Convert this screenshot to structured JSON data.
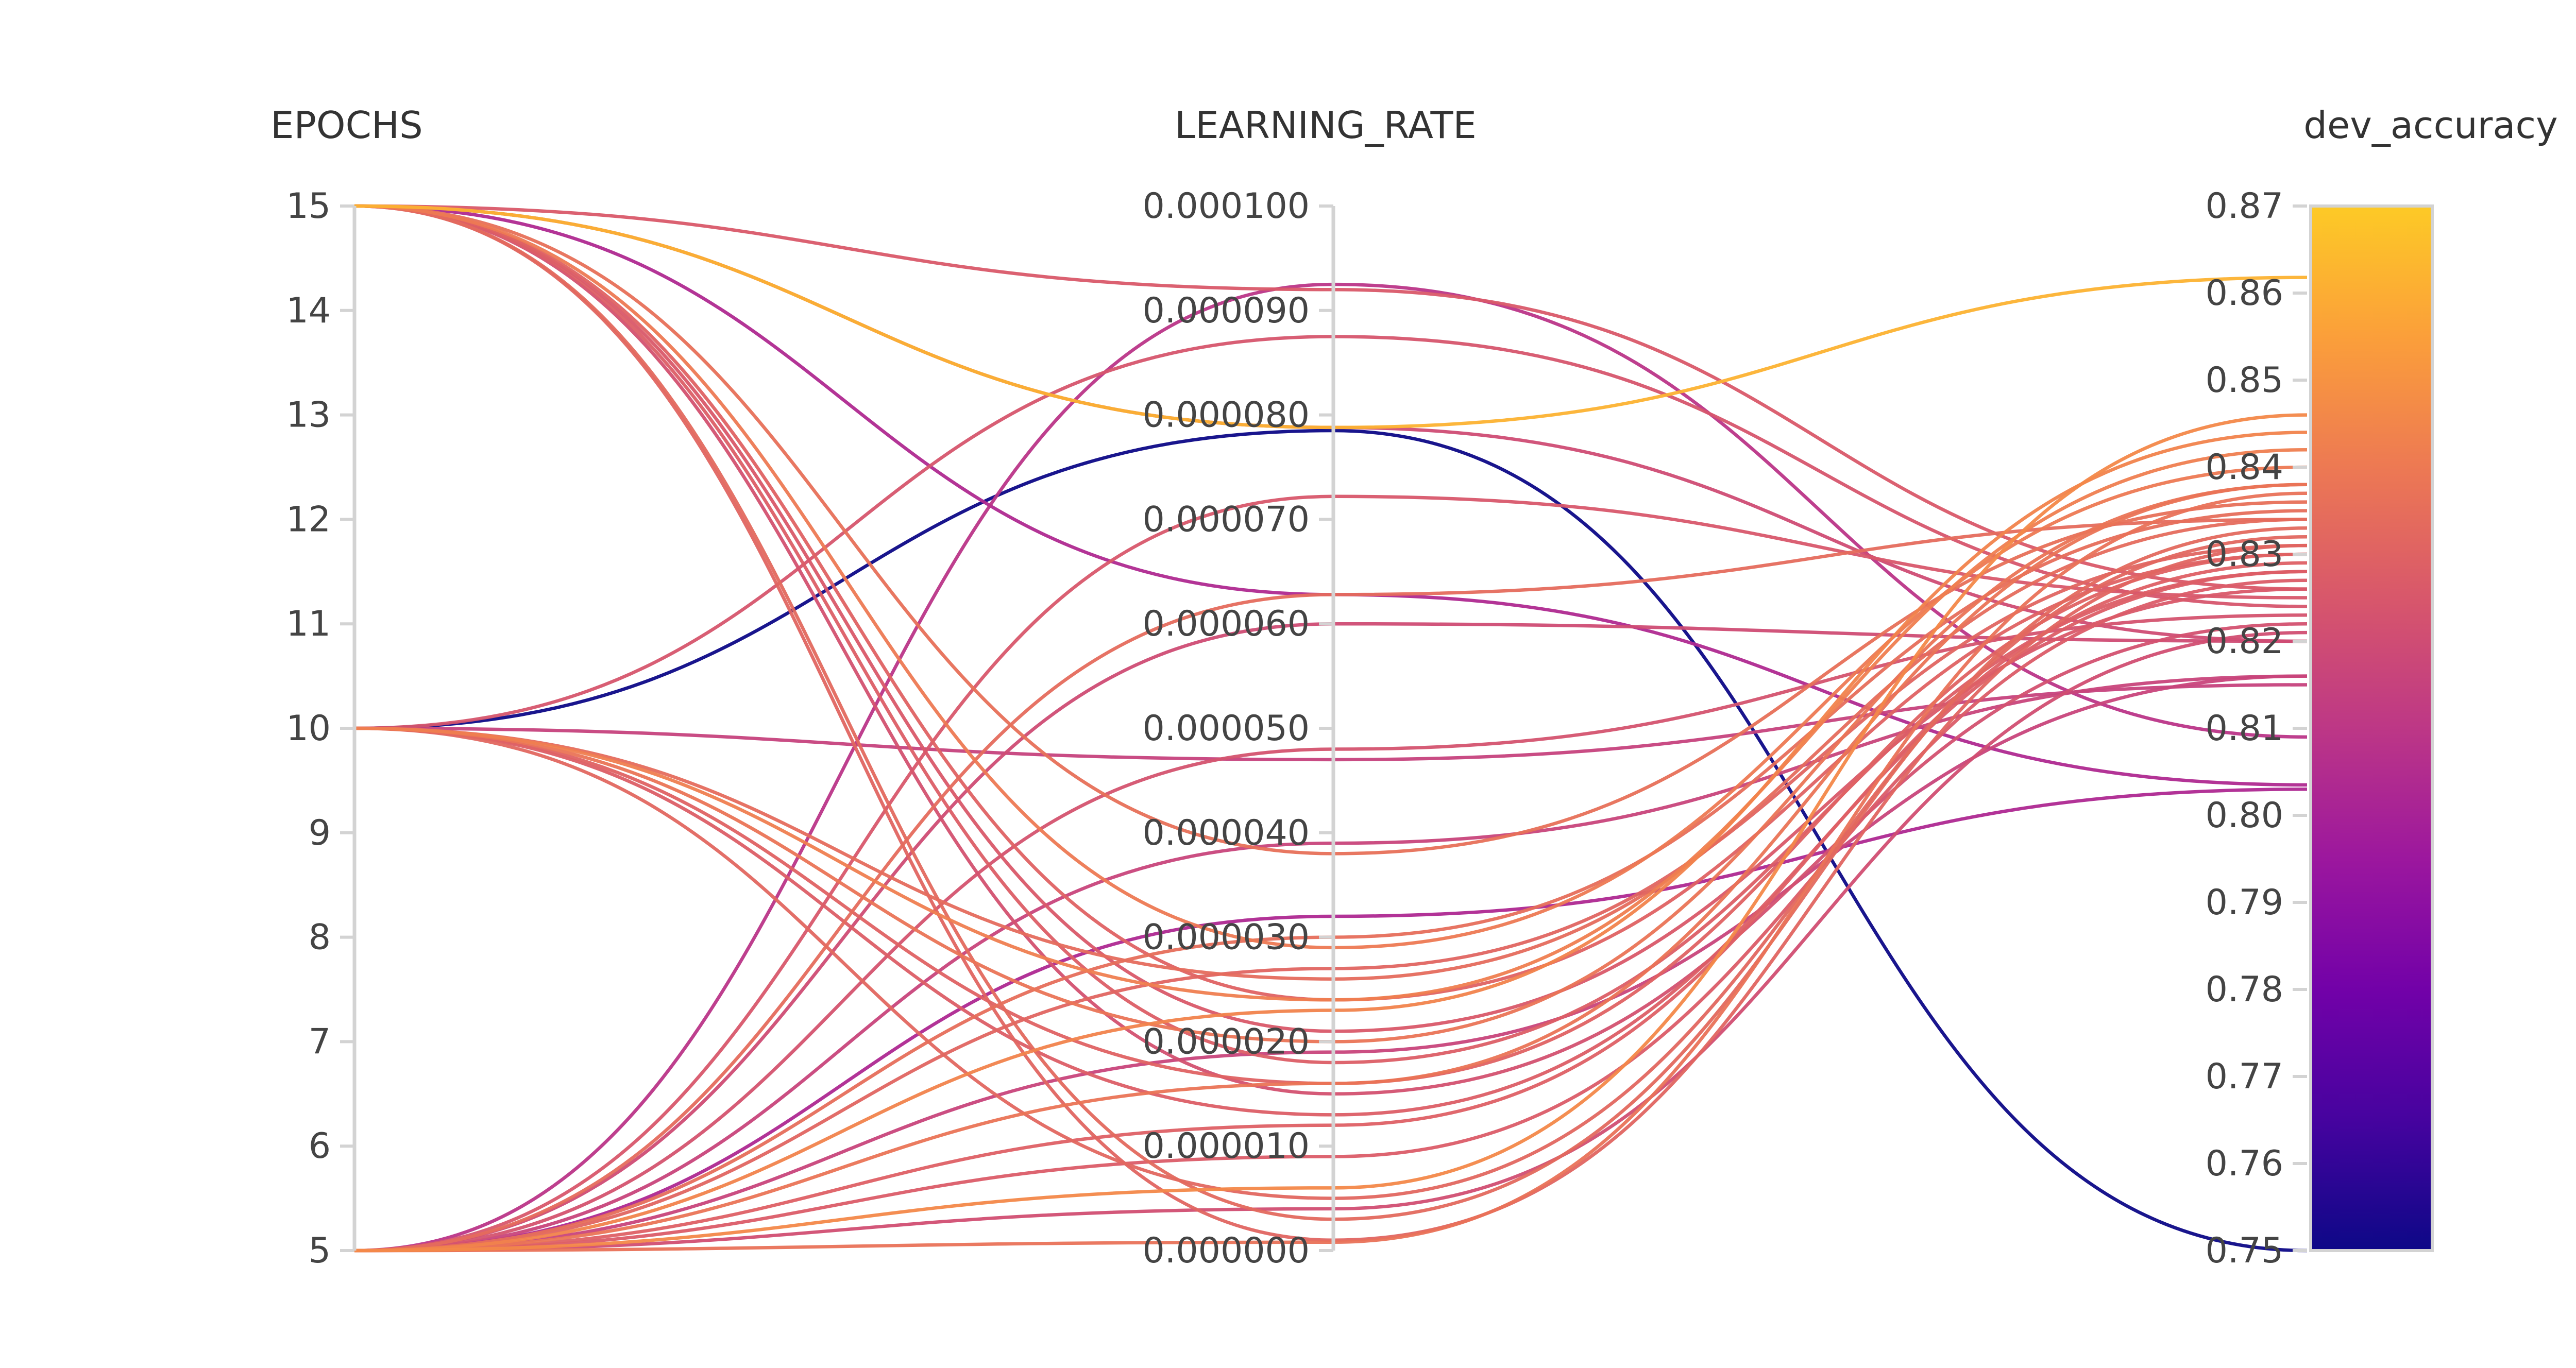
{
  "chart_data": {
    "type": "parallel_coordinates",
    "title": "",
    "axes": [
      {
        "key": "epochs",
        "label": "EPOCHS",
        "range": [
          5,
          15
        ],
        "ticks": [
          "5",
          "6",
          "7",
          "8",
          "9",
          "10",
          "11",
          "12",
          "13",
          "14",
          "15"
        ]
      },
      {
        "key": "learning_rate",
        "label": "LEARNING_RATE",
        "range": [
          0,
          0.0001
        ],
        "ticks": [
          "0.000000",
          "0.000010",
          "0.000020",
          "0.000030",
          "0.000040",
          "0.000050",
          "0.000060",
          "0.000070",
          "0.000080",
          "0.000090",
          "0.000100"
        ]
      },
      {
        "key": "dev_accuracy",
        "label": "dev_accuracy",
        "range": [
          0.75,
          0.87
        ],
        "ticks": [
          "0.75",
          "0.76",
          "0.77",
          "0.78",
          "0.79",
          "0.80",
          "0.81",
          "0.82",
          "0.83",
          "0.84",
          "0.85",
          "0.86",
          "0.87"
        ]
      }
    ],
    "colorscale": {
      "name": "plasma",
      "axis": "dev_accuracy",
      "range": [
        0.75,
        0.87
      ],
      "stops": [
        "#0d0887",
        "#46039f",
        "#7201a8",
        "#9c179e",
        "#bd3786",
        "#d8576b",
        "#ed7953",
        "#fb9f3a",
        "#fdca26"
      ]
    },
    "runs": [
      {
        "epochs": 15,
        "learning_rate": 7.88e-05,
        "dev_accuracy": 0.8618
      },
      {
        "epochs": 15,
        "learning_rate": 9.2e-05,
        "dev_accuracy": 0.826
      },
      {
        "epochs": 15,
        "learning_rate": 7.88e-05,
        "dev_accuracy": 0.82
      },
      {
        "epochs": 15,
        "learning_rate": 6.28e-05,
        "dev_accuracy": 0.8035
      },
      {
        "epochs": 15,
        "learning_rate": 3.8e-05,
        "dev_accuracy": 0.836
      },
      {
        "epochs": 15,
        "learning_rate": 2.9e-05,
        "dev_accuracy": 0.84
      },
      {
        "epochs": 15,
        "learning_rate": 2.4e-05,
        "dev_accuracy": 0.83
      },
      {
        "epochs": 15,
        "learning_rate": 2.1e-05,
        "dev_accuracy": 0.826
      },
      {
        "epochs": 15,
        "learning_rate": 1.8e-05,
        "dev_accuracy": 0.828
      },
      {
        "epochs": 15,
        "learning_rate": 1.5e-05,
        "dev_accuracy": 0.822
      },
      {
        "epochs": 15,
        "learning_rate": 3e-06,
        "dev_accuracy": 0.833
      },
      {
        "epochs": 15,
        "learning_rate": 1e-06,
        "dev_accuracy": 0.831
      },
      {
        "epochs": 10,
        "learning_rate": 7.85e-05,
        "dev_accuracy": 0.75
      },
      {
        "epochs": 10,
        "learning_rate": 8.75e-05,
        "dev_accuracy": 0.824
      },
      {
        "epochs": 10,
        "learning_rate": 4.7e-05,
        "dev_accuracy": 0.815
      },
      {
        "epochs": 10,
        "learning_rate": 2.6e-05,
        "dev_accuracy": 0.834
      },
      {
        "epochs": 10,
        "learning_rate": 2.4e-05,
        "dev_accuracy": 0.842
      },
      {
        "epochs": 10,
        "learning_rate": 2e-05,
        "dev_accuracy": 0.838
      },
      {
        "epochs": 10,
        "learning_rate": 1.6e-05,
        "dev_accuracy": 0.83
      },
      {
        "epochs": 10,
        "learning_rate": 1.3e-05,
        "dev_accuracy": 0.828
      },
      {
        "epochs": 10,
        "learning_rate": 5e-06,
        "dev_accuracy": 0.832
      },
      {
        "epochs": 5,
        "learning_rate": 9.25e-05,
        "dev_accuracy": 0.809
      },
      {
        "epochs": 5,
        "learning_rate": 7.22e-05,
        "dev_accuracy": 0.825
      },
      {
        "epochs": 5,
        "learning_rate": 6.28e-05,
        "dev_accuracy": 0.834
      },
      {
        "epochs": 5,
        "learning_rate": 6e-05,
        "dev_accuracy": 0.82
      },
      {
        "epochs": 5,
        "learning_rate": 4.8e-05,
        "dev_accuracy": 0.823
      },
      {
        "epochs": 5,
        "learning_rate": 3.9e-05,
        "dev_accuracy": 0.816
      },
      {
        "epochs": 5,
        "learning_rate": 3.2e-05,
        "dev_accuracy": 0.803
      },
      {
        "epochs": 5,
        "learning_rate": 3e-05,
        "dev_accuracy": 0.835
      },
      {
        "epochs": 5,
        "learning_rate": 2.7e-05,
        "dev_accuracy": 0.831
      },
      {
        "epochs": 5,
        "learning_rate": 2.3e-05,
        "dev_accuracy": 0.844
      },
      {
        "epochs": 5,
        "learning_rate": 1.9e-05,
        "dev_accuracy": 0.816
      },
      {
        "epochs": 5,
        "learning_rate": 1.6e-05,
        "dev_accuracy": 0.838
      },
      {
        "epochs": 5,
        "learning_rate": 1.2e-05,
        "dev_accuracy": 0.829
      },
      {
        "epochs": 5,
        "learning_rate": 9e-06,
        "dev_accuracy": 0.827
      },
      {
        "epochs": 5,
        "learning_rate": 6e-06,
        "dev_accuracy": 0.846
      },
      {
        "epochs": 5,
        "learning_rate": 4e-06,
        "dev_accuracy": 0.821
      },
      {
        "epochs": 5,
        "learning_rate": 8e-07,
        "dev_accuracy": 0.837
      }
    ]
  }
}
